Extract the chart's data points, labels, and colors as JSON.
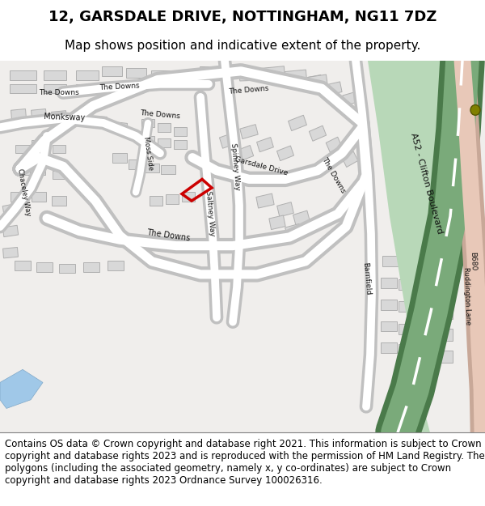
{
  "title_line1": "12, GARSDALE DRIVE, NOTTINGHAM, NG11 7DZ",
  "title_line2": "Map shows position and indicative extent of the property.",
  "footer_text": "Contains OS data © Crown copyright and database right 2021. This information is subject to Crown copyright and database rights 2023 and is reproduced with the permission of HM Land Registry. The polygons (including the associated geometry, namely x, y co-ordinates) are subject to Crown copyright and database rights 2023 Ordnance Survey 100026316.",
  "bg_color": "#ffffff",
  "map_bg": "#f0eeec",
  "road_color": "#ffffff",
  "road_outline": "#c8c8c8",
  "building_fill": "#d8d8d8",
  "building_outline": "#b0b0b0",
  "green_dark": "#4a7a4a",
  "green_light": "#7aaa7a",
  "green_pale": "#b8d8b8",
  "road_b680_color": "#e8c8b8",
  "road_b680_outline": "#c8a898",
  "highlight_color": "#cc0000",
  "text_color": "#000000",
  "title_fontsize": 13,
  "subtitle_fontsize": 11,
  "footer_fontsize": 8.5,
  "roundabout_color": "#808000",
  "water_color": "#a0c8e8"
}
